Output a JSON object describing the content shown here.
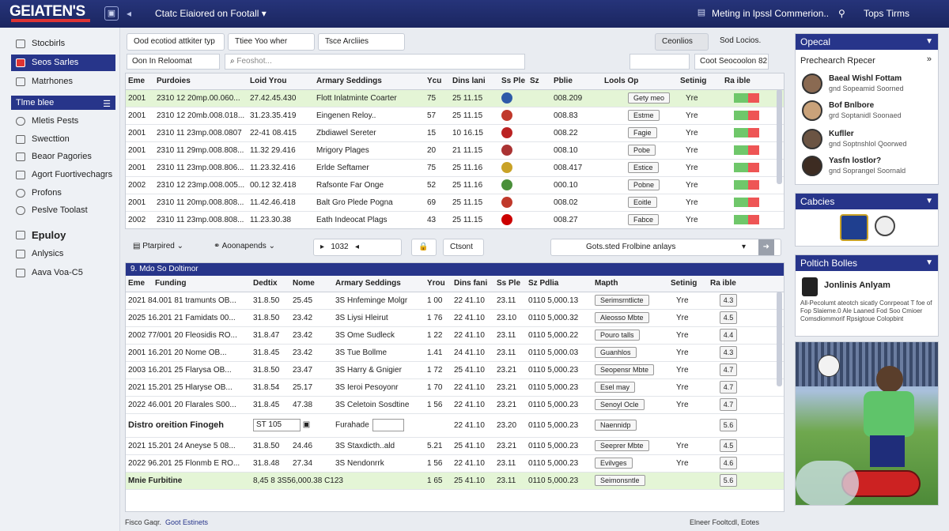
{
  "topbar": {
    "logo": "GEIATEN'S",
    "title": "Ctatc Eiaiored on Footall",
    "center_text": "Meting in lpssl Commerion..",
    "right_text": "Tops Tirms"
  },
  "sidebar": {
    "items": [
      {
        "label": "Stocbirls"
      },
      {
        "label": "Seos Sarles"
      },
      {
        "label": "Matrhones"
      },
      {
        "label": "Tlme blee"
      },
      {
        "label": "Mletis Pests"
      },
      {
        "label": "Swecttion"
      },
      {
        "label": "Beaor Pagories"
      },
      {
        "label": "Agort Fuortivechagrs"
      },
      {
        "label": "Profons"
      },
      {
        "label": "Peslve Toolast"
      },
      {
        "label": "Epuloy"
      },
      {
        "label": "Anlysics"
      },
      {
        "label": "Aava Voa-C5"
      }
    ]
  },
  "toolbar": {
    "chip1": "Ood ecotiod attkiter typ",
    "chip2": "Ttiee Yoo wher",
    "chip3": "Tsce Arcliies",
    "chip4": "Ceonlios",
    "chip5": "Sod Locios.",
    "search1": "Oon In Reloomat",
    "search2": "Feoshot...",
    "search4": "Coot Seocoolon 82"
  },
  "table1": {
    "headers": [
      "Eme",
      "Purdoies",
      "Loid Yrou",
      "Armary Seddings",
      "Ycu",
      "Dins lani",
      "Ss Ple",
      "Sz",
      "Pblie",
      "Lools Op",
      "Setinig",
      "Ra ible"
    ],
    "rows": [
      [
        "2001",
        "2310 12 20mp.00.060...",
        "27.42.45.430",
        "Flott Inlatminte Coarter",
        "75",
        "25 11.15",
        "#2e5aa8",
        "",
        "008.209",
        "Gety meo",
        "Yre"
      ],
      [
        "2001",
        "2310 12 20mb.008.018...",
        "31.23.35.419",
        "Eingenen Reloy..",
        "57",
        "25 11.15",
        "#c0392b",
        "",
        "008.83",
        "Estme",
        "Yre"
      ],
      [
        "2001",
        "2310 11 23mp.008.0807",
        "22-41 08.415",
        "Zbdiawel Sereter",
        "15",
        "10 16.15",
        "#b22",
        "",
        "008.22",
        "Fagie",
        "Yre"
      ],
      [
        "2001",
        "2310 11 29mp.008.808...",
        "11.32 29.416",
        "Mrigory Plages",
        "20",
        "21 11.15",
        "#a33",
        "",
        "008.10",
        "Pobe",
        "Yre"
      ],
      [
        "2001",
        "2310 11 23mp.008.806...",
        "11.23.32.416",
        "Erlde Seftamer",
        "75",
        "25 11.16",
        "#c9a227",
        "",
        "008.417",
        "Estice",
        "Yre"
      ],
      [
        "2002",
        "2310 12 23mp.008.005...",
        "00.12 32.418",
        "Rafsonte Far Onge",
        "52",
        "25 11.16",
        "#4a8f3a",
        "",
        "000.10",
        "Pobne",
        "Yre"
      ],
      [
        "2001",
        "2310 11 20mp.008.808...",
        "11.42.46.418",
        "Balt Gro Plede Pogna",
        "69",
        "25 11.15",
        "#c0392b",
        "",
        "008.02",
        "Eoitle",
        "Yre"
      ],
      [
        "2002",
        "2310 11 23mp.008.808...",
        "11.23.30.38",
        "Eath Indeocat Plags",
        "43",
        "25 11.15",
        "#c00",
        "",
        "008.27",
        "Fabce",
        "Yre"
      ]
    ]
  },
  "midbar": {
    "left1": "Ptarpired",
    "left2": "Aoonapends",
    "pager": "1032",
    "btn": "Ctsont",
    "select": "Gots.sted Frolbine anlays"
  },
  "table2": {
    "title": "9. Mdo So Doltimor",
    "headers": [
      "Eme",
      "Funding",
      "Dedtix",
      "Nome",
      "Armary Seddings",
      "Yrou",
      "Dins fani",
      "Ss Ple",
      "Sz",
      "Pdlia",
      "Mapth",
      "Setinig",
      "Ra ible"
    ],
    "rows": [
      [
        "2021 84.001 81 tramunts OB...",
        "31.8.50",
        "25.45",
        "3S Hnfeminge Molgr",
        "1 00",
        "22 41.10",
        "23.11",
        "0110 5,000.13",
        "Serimsrntlicte",
        "Yre",
        "4.3"
      ],
      [
        "2025 16.201 21 Famidats 00...",
        "31.8.50",
        "23.42",
        "3S Liysi Hleirut",
        "1 76",
        "22 41.10",
        "23.10",
        "0110 5,000.32",
        "Aleosso Mbte",
        "Yre",
        "4.5"
      ],
      [
        "2002 77/001 20 Fleosidis RO...",
        "31.8.47",
        "23.42",
        "3S Ome Sudleck",
        "1 22",
        "22 41.10",
        "23.11",
        "0110 5,000.22",
        "Pouro talls",
        "Yre",
        "4.4"
      ],
      [
        "2001 16.201 20 Nome OB...",
        "31.8.45",
        "23.42",
        "3S Tue Bollme",
        "1.41",
        "24 41.10",
        "23.11",
        "0110 5,000.03",
        "Guanhlos",
        "Yre",
        "4.3"
      ],
      [
        "2003 16.201 25 Flarysa OB...",
        "31.8.50",
        "23.47",
        "3S Harry & Gnigier",
        "1 72",
        "25 41.10",
        "23.21",
        "0110 5,000.23",
        "Seopensr Mbte",
        "Yre",
        "4.7"
      ],
      [
        "2021 15.201 25 Hlaryse OB...",
        "31.8.54",
        "25.17",
        "3S Ieroi Pesoyonr",
        "1 70",
        "22 41.10",
        "23.21",
        "0110 5,000.23",
        "Esel may",
        "Yre",
        "4.7"
      ],
      [
        "2022 46.001 20 Flarales S00...",
        "31.8.45",
        "47.38",
        "3S Celetoin Sosdtine",
        "1 56",
        "22 41.10",
        "23.21",
        "0110 5,000.23",
        "Senoyl Ocle",
        "Yre",
        "4.7"
      ]
    ],
    "special": {
      "label": "Distro oreition Finogeh",
      "input": "ST 105",
      "mid": "Furahade",
      "c1": "22 41.10",
      "c2": "23.20",
      "c3": "0110 5,000.23",
      "btn": "Naennidp",
      "box": "5.6"
    },
    "rows2": [
      [
        "2021 15.201 24 Aneyse 5 08...",
        "31.8.50",
        "24.46",
        "3S Staxdicth..ald",
        "5.21",
        "25 41.10",
        "23.21",
        "0110 5,000.23",
        "Seeprer Mbte",
        "Yre",
        "4.5"
      ],
      [
        "2022 96.201 25 Flonmb E RO...",
        "31.8.48",
        "27.34",
        "3S Nendonrrk",
        "1 56",
        "22 41.10",
        "23.11",
        "0110 5,000.23",
        "Evilvges",
        "Yre",
        "4.6"
      ]
    ],
    "total": {
      "label": "Mnie Furbitine",
      "v1": "8,45 8 3S56,000.38 C123",
      "v2": "1 65",
      "v3": "25 41.10",
      "v4": "23.11",
      "v5": "0110 5,000.23",
      "btn": "Seimonsntle",
      "box": "5.6"
    }
  },
  "right": {
    "panel1_title": "Opecal",
    "panel1_sub": "Prechearch Rpecer",
    "people": [
      {
        "name": "Baeal Wishl Fottam",
        "sub": "gnd Sopeamid Soorned"
      },
      {
        "name": "Bof Bnlbore",
        "sub": "grd Soptanidl Soonaed"
      },
      {
        "name": "Kufller",
        "sub": "gnd Soptnshlol Qoorwed"
      },
      {
        "name": "Yasfn lostlor?",
        "sub": "gnd Soprangel Soornald"
      }
    ],
    "panel2_title": "Cabcies",
    "panel3_title": "Poltich Bolles",
    "panel3_name": "Jonlinis Anlyam",
    "panel3_desc": "All-Pecolumt ateotch sicatly Conrpeoat T foe of Fop Slaieme.0 Ale Laaned Fod Soo Cmioer Comsdiommorif Rpsigtoue Colopbint"
  },
  "footer": {
    "left1": "Fisco Gaqr.",
    "left2": "Goot Estinets",
    "right1": "Elneer Fooltcdl,",
    "right2": "Eotes"
  },
  "colors": {
    "brand": "#27358a",
    "accent_red": "#d33333",
    "highlight_green": "#e4f5d6"
  }
}
